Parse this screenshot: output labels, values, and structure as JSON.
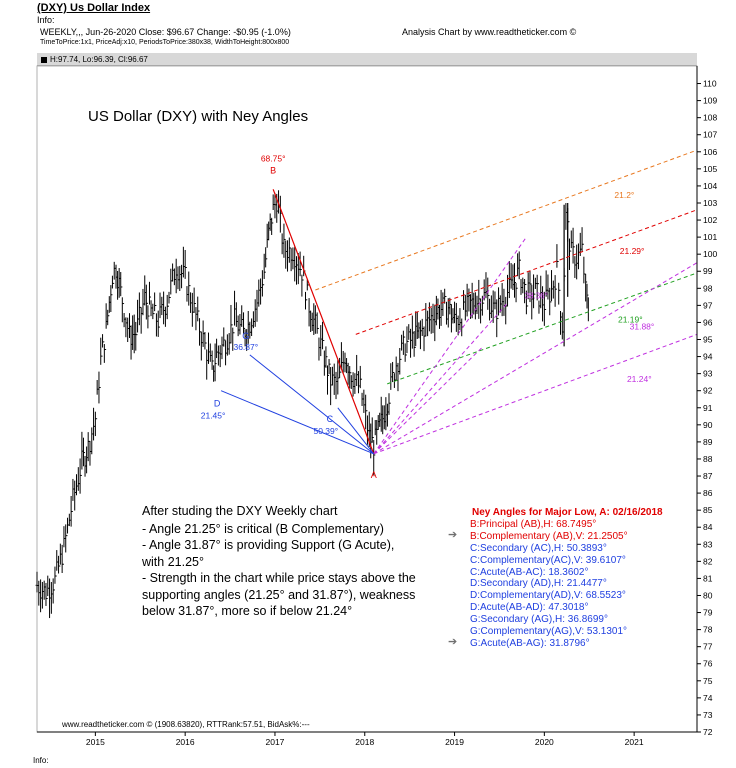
{
  "header": {
    "title": "(DXY) Us Dollar Index",
    "info_label": "Info:",
    "line1": "WEEKLY,,, Jun-26-2020   Close: $96.67   Change: -$0.95  (-1.0%)",
    "line2": "TimeToPrice:1x1,  PriceAdj:x10,  PeriodsToPrice:380x38,  WidthToHeight:800x800",
    "credit": "Analysis Chart by www.readtheticker.com ©",
    "ohlc": "H:97.74, Lo:96.39, Cl:96.67"
  },
  "chart_data": {
    "type": "line",
    "title": "US Dollar (DXY) with Ney Angles",
    "y_axis": {
      "ylim": [
        72,
        110.5
      ],
      "ticks": [
        72,
        73,
        74,
        75,
        76,
        77,
        78,
        79,
        80,
        81,
        82,
        83,
        84,
        85,
        86,
        87,
        88,
        89,
        90,
        91,
        92,
        93,
        94,
        95,
        96,
        97,
        98,
        99,
        100,
        101,
        102,
        103,
        104,
        105,
        106,
        107,
        108,
        109,
        110
      ],
      "position": "right"
    },
    "x_axis": {
      "xlim": [
        2014.35,
        2021.7
      ],
      "ticks": [
        "2015",
        "2016",
        "2017",
        "2018",
        "2019",
        "2020",
        "2021"
      ],
      "tick_values": [
        2015,
        2016,
        2017,
        2018,
        2019,
        2020,
        2021
      ]
    },
    "price_series": {
      "name": "DXY weekly",
      "style": "ohlc-bars",
      "points": [
        [
          2014.35,
          80.6
        ],
        [
          2014.45,
          80.2
        ],
        [
          2014.55,
          80.9
        ],
        [
          2014.65,
          82.8
        ],
        [
          2014.75,
          85.6
        ],
        [
          2014.85,
          87.8
        ],
        [
          2014.92,
          88.7
        ],
        [
          2015.0,
          90.4
        ],
        [
          2015.06,
          93.8
        ],
        [
          2015.12,
          95.6
        ],
        [
          2015.19,
          98.8
        ],
        [
          2015.23,
          99.2
        ],
        [
          2015.3,
          97.3
        ],
        [
          2015.38,
          95.2
        ],
        [
          2015.45,
          95.4
        ],
        [
          2015.55,
          97.4
        ],
        [
          2015.62,
          96.6
        ],
        [
          2015.7,
          96.1
        ],
        [
          2015.8,
          97.3
        ],
        [
          2015.9,
          99.3
        ],
        [
          2016.0,
          98.6
        ],
        [
          2016.1,
          96.7
        ],
        [
          2016.2,
          95.0
        ],
        [
          2016.3,
          93.2
        ],
        [
          2016.35,
          94.1
        ],
        [
          2016.45,
          94.9
        ],
        [
          2016.55,
          96.1
        ],
        [
          2016.65,
          95.4
        ],
        [
          2016.72,
          96.0
        ],
        [
          2016.8,
          97.2
        ],
        [
          2016.88,
          99.0
        ],
        [
          2016.93,
          101.2
        ],
        [
          2016.98,
          102.6
        ],
        [
          2017.02,
          103.2
        ],
        [
          2017.1,
          100.3
        ],
        [
          2017.2,
          100.2
        ],
        [
          2017.3,
          99.0
        ],
        [
          2017.38,
          97.0
        ],
        [
          2017.45,
          95.8
        ],
        [
          2017.55,
          93.9
        ],
        [
          2017.62,
          92.6
        ],
        [
          2017.7,
          92.4
        ],
        [
          2017.78,
          94.1
        ],
        [
          2017.85,
          93.0
        ],
        [
          2017.95,
          92.1
        ],
        [
          2018.05,
          89.3
        ],
        [
          2018.1,
          88.8
        ],
        [
          2018.15,
          89.6
        ],
        [
          2018.2,
          90.4
        ],
        [
          2018.27,
          91.8
        ],
        [
          2018.35,
          93.6
        ],
        [
          2018.45,
          94.7
        ],
        [
          2018.55,
          95.1
        ],
        [
          2018.62,
          95.4
        ],
        [
          2018.7,
          96.0
        ],
        [
          2018.78,
          96.6
        ],
        [
          2018.85,
          96.8
        ],
        [
          2018.93,
          96.9
        ],
        [
          2019.0,
          96.1
        ],
        [
          2019.08,
          96.4
        ],
        [
          2019.16,
          97.0
        ],
        [
          2019.25,
          97.3
        ],
        [
          2019.35,
          97.6
        ],
        [
          2019.45,
          96.6
        ],
        [
          2019.55,
          97.5
        ],
        [
          2019.65,
          98.2
        ],
        [
          2019.72,
          99.0
        ],
        [
          2019.8,
          97.6
        ],
        [
          2019.9,
          97.8
        ],
        [
          2020.0,
          97.1
        ],
        [
          2020.08,
          97.9
        ],
        [
          2020.14,
          99.0
        ],
        [
          2020.2,
          95.8
        ],
        [
          2020.24,
          102.2
        ],
        [
          2020.3,
          100.0
        ],
        [
          2020.36,
          99.8
        ],
        [
          2020.42,
          100.2
        ],
        [
          2020.46,
          97.8
        ],
        [
          2020.49,
          96.67
        ]
      ]
    },
    "pivots": [
      {
        "label": "B",
        "angle_label": "68.75°",
        "x": 2016.98,
        "y": 103.8,
        "color": "#e00000"
      },
      {
        "label": "A",
        "x": 2018.1,
        "y": 88.3,
        "color": "#e00000"
      },
      {
        "label": "G",
        "angle_label": "36.87°",
        "x": 2016.72,
        "y": 94.1,
        "color": "#2040e0"
      },
      {
        "label": "D",
        "angle_label": "21.45°",
        "x": 2016.4,
        "y": 92.0,
        "color": "#2040e0"
      },
      {
        "label": "C",
        "angle_label": "50.39°",
        "x": 2017.7,
        "y": 91.0,
        "color": "#2040e0"
      }
    ],
    "angle_lines": [
      {
        "name": "21.2°",
        "color": "#e87820",
        "from": [
          2017.45,
          97.9
        ],
        "to": [
          2021.7,
          106.1
        ],
        "label_at": [
          2020.78,
          103.3
        ]
      },
      {
        "name": "21.29°",
        "color": "#e00000",
        "from": [
          2017.9,
          95.3
        ],
        "to": [
          2021.7,
          102.6
        ],
        "label_at": [
          2020.84,
          100.0
        ]
      },
      {
        "name": "21.19°",
        "color": "#20a020",
        "from": [
          2018.25,
          92.4
        ],
        "to": [
          2021.7,
          98.9
        ],
        "label_at": [
          2020.82,
          96.0
        ]
      },
      {
        "name": "31.88°",
        "color": "#c030e0",
        "from": [
          2018.1,
          88.3
        ],
        "to": [
          2021.7,
          99.5
        ],
        "label_at": [
          2020.95,
          95.6
        ]
      },
      {
        "name": "21.24°",
        "color": "#c030e0",
        "from": [
          2018.1,
          88.3
        ],
        "to": [
          2021.7,
          95.3
        ],
        "label_at": [
          2020.92,
          92.5
        ]
      }
    ],
    "annotation_text": {
      "intro": "After studing the DXY Weekly chart",
      "bullets": [
        "- Angle 21.25° is critical (B Complementary)",
        "- Angle 31.87° is providing Support (G Acute),",
        "   with 21.25°",
        "- Strength in the chart while price stays above the",
        "   supporting angles (21.25° and 31.87°), weakness",
        "   below 31.87°, more so if below 21.24°"
      ]
    },
    "legend": {
      "title": "Ney Angles for Major Low, A: 02/16/2018",
      "rows": [
        {
          "text": "B:Principal (AB),H: 68.7495°",
          "color": "#e00000",
          "arrow": false
        },
        {
          "text": "B:Complementary (AB),V: 21.2505°",
          "color": "#e00000",
          "arrow": true
        },
        {
          "text": "C:Secondary (AC),H: 50.3893°",
          "color": "#2040e0",
          "arrow": false
        },
        {
          "text": "C:Complementary(AC),V: 39.6107°",
          "color": "#2040e0",
          "arrow": false
        },
        {
          "text": "C:Acute(AB-AC): 18.3602°",
          "color": "#2040e0",
          "arrow": false
        },
        {
          "text": "D:Secondary (AD),H: 21.4477°",
          "color": "#2040e0",
          "arrow": false
        },
        {
          "text": "D:Complementary(AD),V: 68.5523°",
          "color": "#2040e0",
          "arrow": false
        },
        {
          "text": "D:Acute(AB-AD): 47.3018°",
          "color": "#2040e0",
          "arrow": false
        },
        {
          "text": "G:Secondary (AG),H: 36.8699°",
          "color": "#2040e0",
          "arrow": false
        },
        {
          "text": "G:Complementary(AG),V: 53.1301°",
          "color": "#2040e0",
          "arrow": false
        },
        {
          "text": "G:Acute(AB-AG): 31.8796°",
          "color": "#2040e0",
          "arrow": true
        }
      ]
    },
    "grid": false
  },
  "footer": {
    "credit": "www.readtheticker.com © (1908.63820), RTTRank:57.51, BidAsk%:---",
    "info_label": "Info:"
  }
}
